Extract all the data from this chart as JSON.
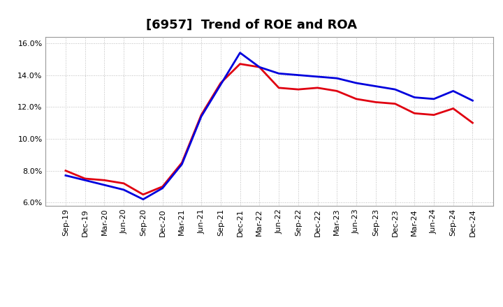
{
  "title": "[6957]  Trend of ROE and ROA",
  "x_labels": [
    "Sep-19",
    "Dec-19",
    "Mar-20",
    "Jun-20",
    "Sep-20",
    "Dec-20",
    "Mar-21",
    "Jun-21",
    "Sep-21",
    "Dec-21",
    "Mar-22",
    "Jun-22",
    "Sep-22",
    "Dec-22",
    "Mar-23",
    "Jun-23",
    "Sep-23",
    "Dec-23",
    "Mar-24",
    "Jun-24",
    "Sep-24",
    "Dec-24"
  ],
  "ROE": [
    8.0,
    7.5,
    7.4,
    7.2,
    6.5,
    7.0,
    8.5,
    11.5,
    13.5,
    14.7,
    14.5,
    13.2,
    13.1,
    13.2,
    13.0,
    12.5,
    12.3,
    12.2,
    11.6,
    11.5,
    11.9,
    11.0
  ],
  "ROA": [
    7.7,
    7.4,
    7.1,
    6.8,
    6.2,
    6.9,
    8.4,
    11.4,
    13.4,
    15.4,
    14.5,
    14.1,
    14.0,
    13.9,
    13.8,
    13.5,
    13.3,
    13.1,
    12.6,
    12.5,
    13.0,
    12.4
  ],
  "roe_color": "#e00010",
  "roa_color": "#0000dd",
  "line_width": 2.0,
  "ylim": [
    5.8,
    16.4
  ],
  "yticks": [
    6.0,
    8.0,
    10.0,
    12.0,
    14.0,
    16.0
  ],
  "background_color": "#ffffff",
  "grid_color": "#bbbbbb",
  "title_fontsize": 13,
  "tick_fontsize": 8,
  "legend_fontsize": 10
}
